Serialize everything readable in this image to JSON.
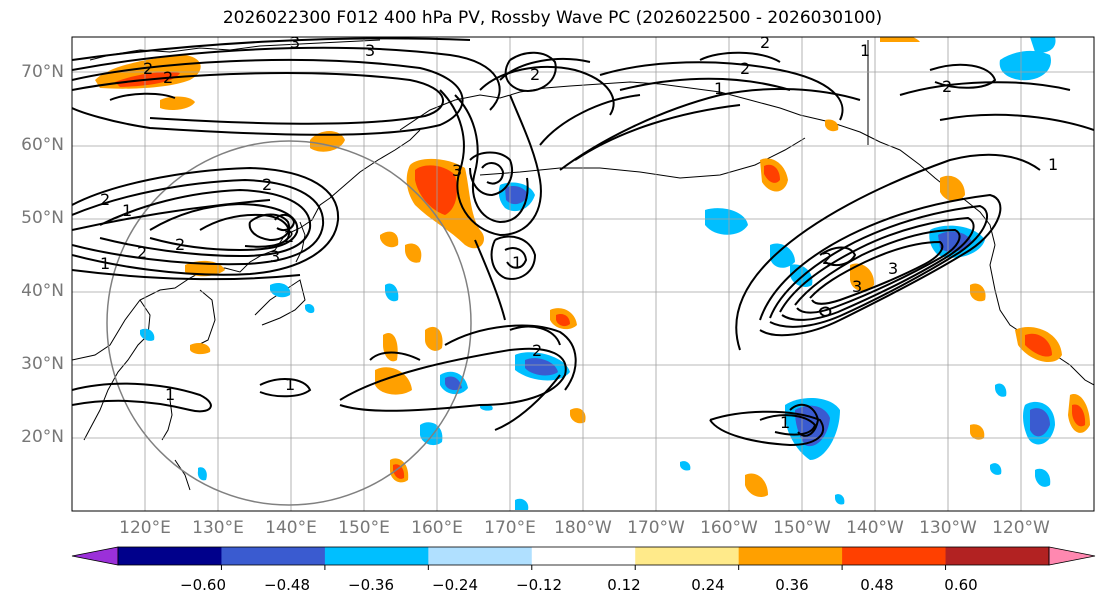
{
  "title": "2026022300 F012 400 hPa PV, Rossby Wave PC (2026022500 - 2026030100)",
  "lat_labels": [
    "70°N",
    "60°N",
    "50°N",
    "40°N",
    "30°N",
    "20°N"
  ],
  "lon_labels": [
    "120°E",
    "130°E",
    "140°E",
    "150°E",
    "160°E",
    "170°E",
    "180°W",
    "170°W",
    "160°W",
    "150°W",
    "140°W",
    "130°W",
    "120°W"
  ],
  "colorbar": {
    "colors": [
      "#9b30d9",
      "#00008b",
      "#3a5bd0",
      "#00bfff",
      "#b0e0ff",
      "#ffffff",
      "#ffea8a",
      "#ffa000",
      "#ff4000",
      "#b22222",
      "#ff88b0"
    ],
    "tick_labels": [
      "−0.60",
      "−0.48",
      "−0.36",
      "−0.24",
      "−0.12",
      "0.12",
      "0.24",
      "0.36",
      "0.48",
      "0.60"
    ]
  },
  "contour_labels": [
    "2",
    "2",
    "3",
    "3",
    "1",
    "2",
    "1",
    "2",
    "1",
    "2",
    "1",
    "2",
    "2",
    "3",
    "3",
    "2",
    "1",
    "2",
    "2",
    "2",
    "2",
    "1",
    "1",
    "1",
    "2",
    "3",
    "3",
    "1"
  ]
}
